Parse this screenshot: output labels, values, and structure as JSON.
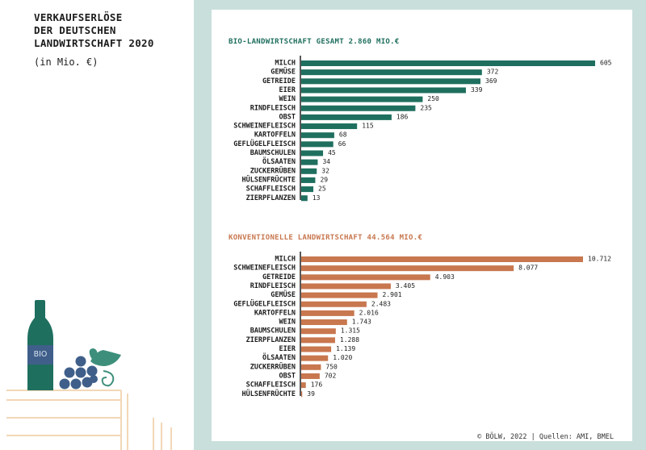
{
  "title_lines": [
    "VERKAUFSERLÖSE",
    "DER DEUTSCHEN",
    "LANDWIRTSCHAFT 2020"
  ],
  "unit": "(in Mio. €)",
  "bottle_label": "BIO",
  "footer": "© BÖLW, 2022 | Quellen: AMI, BMEL",
  "colors": {
    "bio": "#1f6f5f",
    "konv": "#c8774f",
    "bg": "#c9dfdb",
    "axis": "#222222"
  },
  "chart_data": [
    {
      "type": "bar",
      "orientation": "horizontal",
      "title": "BIO-LANDWIRTSCHAFT GESAMT 2.860 MIO.€",
      "categories": [
        "MILCH",
        "GEMÜSE",
        "GETREIDE",
        "EIER",
        "WEIN",
        "RINDFLEISCH",
        "OBST",
        "SCHWEINEFLEISCH",
        "KARTOFFELN",
        "GEFLÜGELFLEISCH",
        "BAUMSCHULEN",
        "ÖLSAATEN",
        "ZUCKERRÜBEN",
        "HÜLSENFRÜCHTE",
        "SCHAFFLEISCH",
        "ZIERPFLANZEN"
      ],
      "values": [
        605,
        372,
        369,
        339,
        250,
        235,
        186,
        115,
        68,
        66,
        45,
        34,
        32,
        29,
        25,
        13
      ],
      "value_labels": [
        "605",
        "372",
        "369",
        "339",
        "250",
        "235",
        "186",
        "115",
        "68",
        "66",
        "45",
        "34",
        "32",
        "29",
        "25",
        "13"
      ],
      "color": "#1f6f5f"
    },
    {
      "type": "bar",
      "orientation": "horizontal",
      "title": "KONVENTIONELLE LANDWIRTSCHAFT 44.564 MIO.€",
      "categories": [
        "MILCH",
        "SCHWEINEFLEISCH",
        "GETREIDE",
        "RINDFLEISCH",
        "GEMÜSE",
        "GEFLÜGELFLEISCH",
        "KARTOFFELN",
        "WEIN",
        "BAUMSCHULEN",
        "ZIERPFLANZEN",
        "EIER",
        "ÖLSAATEN",
        "ZUCKERRÜBEN",
        "OBST",
        "SCHAFFLEISCH",
        "HÜLSENFRÜCHTE"
      ],
      "values": [
        10712,
        8077,
        4903,
        3405,
        2901,
        2483,
        2016,
        1743,
        1315,
        1288,
        1139,
        1020,
        750,
        702,
        176,
        39
      ],
      "value_labels": [
        "10.712",
        "8.077",
        "4.903",
        "3.405",
        "2.901",
        "2.483",
        "2.016",
        "1.743",
        "1.315",
        "1.288",
        "1.139",
        "1.020",
        "750",
        "702",
        "176",
        "39"
      ],
      "color": "#c8774f"
    }
  ]
}
